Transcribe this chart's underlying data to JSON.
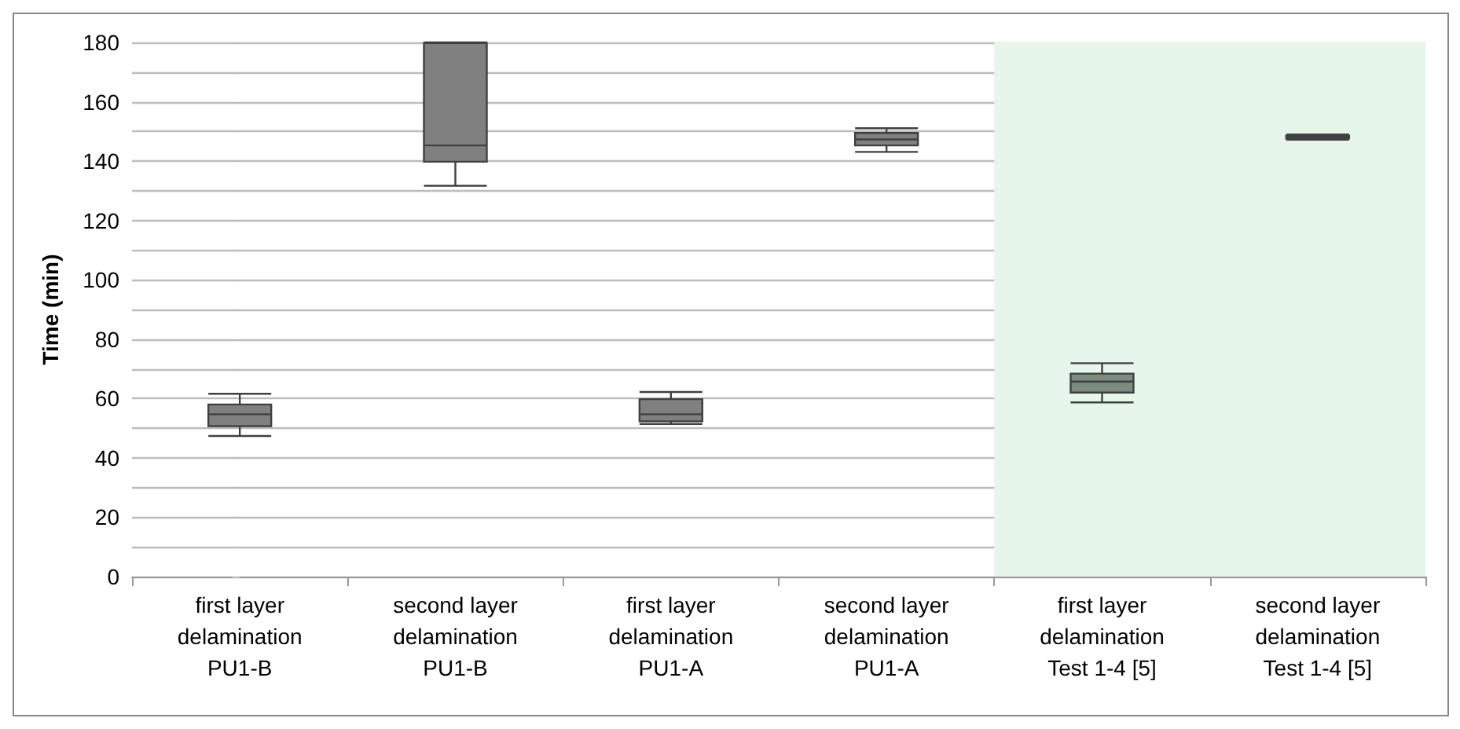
{
  "chart_data": {
    "type": "box",
    "ylabel": "Time (min)",
    "categories": [
      "first layer\ndelamination\nPU1-B",
      "second layer\ndelamination\nPU1-B",
      "first layer\ndelamination\nPU1-A",
      "second layer\ndelamination\nPU1-A",
      "first layer\ndelamination\nTest 1-4 [5]",
      "second layer\ndelamination\nTest 1-4 [5]"
    ],
    "boxes": [
      {
        "low": 47.4,
        "q1": 50.7,
        "median": 54.7,
        "q3": 58,
        "high": 61.6
      },
      {
        "low": 131.7,
        "q1": 139.8,
        "median": 145.3,
        "q3": 179.8,
        "high": 180
      },
      {
        "low": 51.4,
        "q1": 52.3,
        "median": 54.7,
        "q3": 59.8,
        "high": 62.2
      },
      {
        "low": 143.1,
        "q1": 145.3,
        "median": 147.3,
        "q3": 149.5,
        "high": 151.1
      },
      {
        "low": 58.7,
        "q1": 62,
        "median": 65.7,
        "q3": 68.4,
        "high": 71.9
      },
      {
        "low": 147.2,
        "q1": 147.6,
        "median": 148.1,
        "q3": 148.6,
        "high": 149
      }
    ],
    "colors": [
      "#808080",
      "#808080",
      "#808080",
      "#808080",
      "#7b8c80",
      "#5e6e62"
    ],
    "ylim": [
      0,
      180
    ],
    "yticks": [
      0,
      {
        "value": 10,
        "label": null
      },
      20,
      {
        "value": 30,
        "label": null
      },
      40,
      {
        "value": 50,
        "label": null
      },
      60,
      {
        "value": 70,
        "label": null
      },
      80,
      {
        "value": 90,
        "label": null
      },
      100,
      {
        "value": 110,
        "label": null
      },
      120,
      {
        "value": 130,
        "label": null
      },
      140,
      {
        "value": 150,
        "label": null
      },
      160,
      {
        "value": 170,
        "label": null
      },
      180
    ],
    "bands": [
      {
        "axis": "x",
        "from": "first layer\ndelamination\nTest 1-4 [5]",
        "to": "second layer\ndelamination\nTest 1-4 [5]",
        "color": "#e6f6ea"
      }
    ],
    "grid": "y"
  }
}
